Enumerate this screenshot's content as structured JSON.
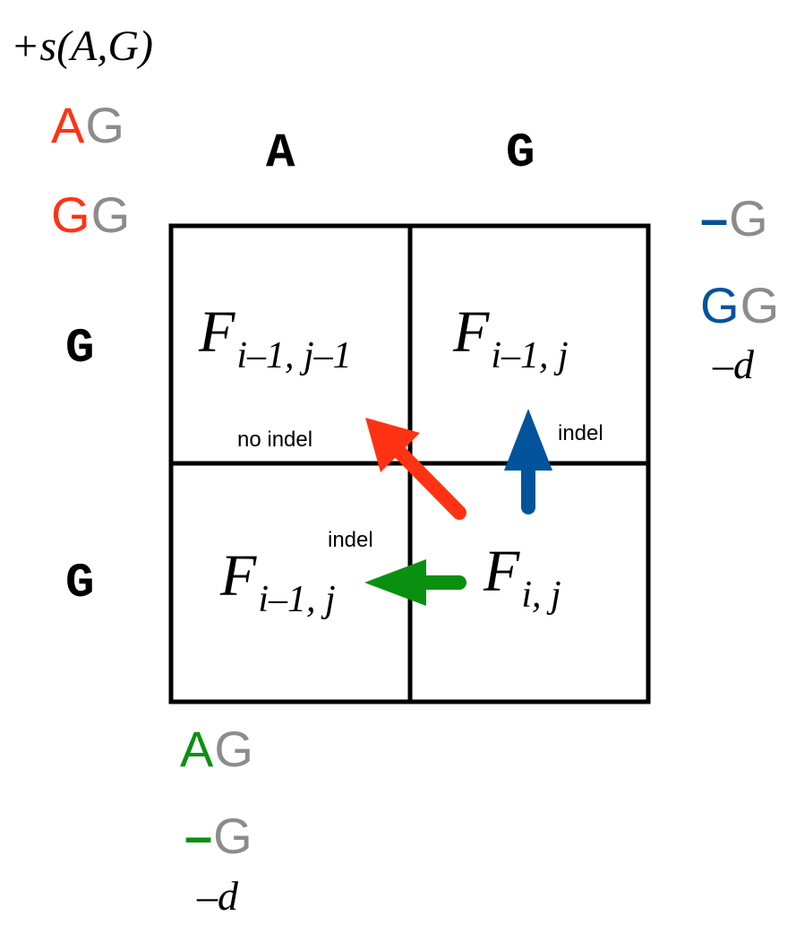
{
  "score_label": "+s(A,G)",
  "diagonal_alignment": {
    "top": [
      "A",
      "G"
    ],
    "bottom": [
      "G",
      "G"
    ]
  },
  "up_alignment": {
    "top": [
      "–",
      "G"
    ],
    "bottom": [
      "G",
      "G"
    ],
    "penalty": "–d"
  },
  "left_alignment": {
    "top": [
      "A",
      "G"
    ],
    "bottom": [
      "–",
      "G"
    ],
    "penalty": "–d"
  },
  "column_headers": [
    "A",
    "G"
  ],
  "row_headers": [
    "G",
    "G"
  ],
  "cells": {
    "top_left": {
      "main": "F",
      "sub": "i–1, j–1"
    },
    "top_right": {
      "main": "F",
      "sub": "i–1, j"
    },
    "bottom_left": {
      "main": "F",
      "sub": "i–1, j"
    },
    "bottom_right": {
      "main": "F",
      "sub": "i, j"
    }
  },
  "arrow_labels": {
    "diagonal": "no indel",
    "up": "indel",
    "left": "indel"
  },
  "colors": {
    "diagonal": "#ff3314",
    "up": "#01539a",
    "left": "#0a9010",
    "gap_gray": "#8c8c8c"
  }
}
